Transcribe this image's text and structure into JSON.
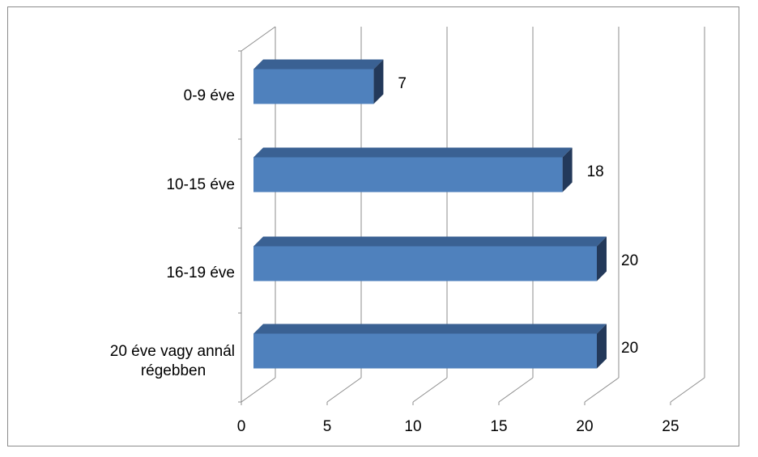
{
  "chart_data": {
    "type": "bar",
    "orientation": "horizontal",
    "three_d": true,
    "categories": [
      "0-9 éve",
      "10-15 éve",
      "16-19 éve",
      "20 éve vagy annál régebben"
    ],
    "category_label_lines": [
      [
        "0-9 éve"
      ],
      [
        "10-15 éve"
      ],
      [
        "16-19 éve"
      ],
      [
        "20 éve vagy annál",
        "régebben"
      ]
    ],
    "values": [
      7,
      18,
      20,
      20
    ],
    "data_labels": [
      "7",
      "18",
      "20",
      "20"
    ],
    "xlim": [
      0,
      25
    ],
    "x_ticks": [
      "0",
      "5",
      "10",
      "15",
      "20",
      "25"
    ],
    "title": "",
    "xlabel": "",
    "ylabel": "",
    "grid": true,
    "legend": "none",
    "colors": {
      "bar_front": "#4f81bd",
      "bar_top": "#3a6193",
      "bar_side": "#23395a",
      "gridline": "#8c8c8c",
      "frame": "#8c8c8c"
    }
  }
}
